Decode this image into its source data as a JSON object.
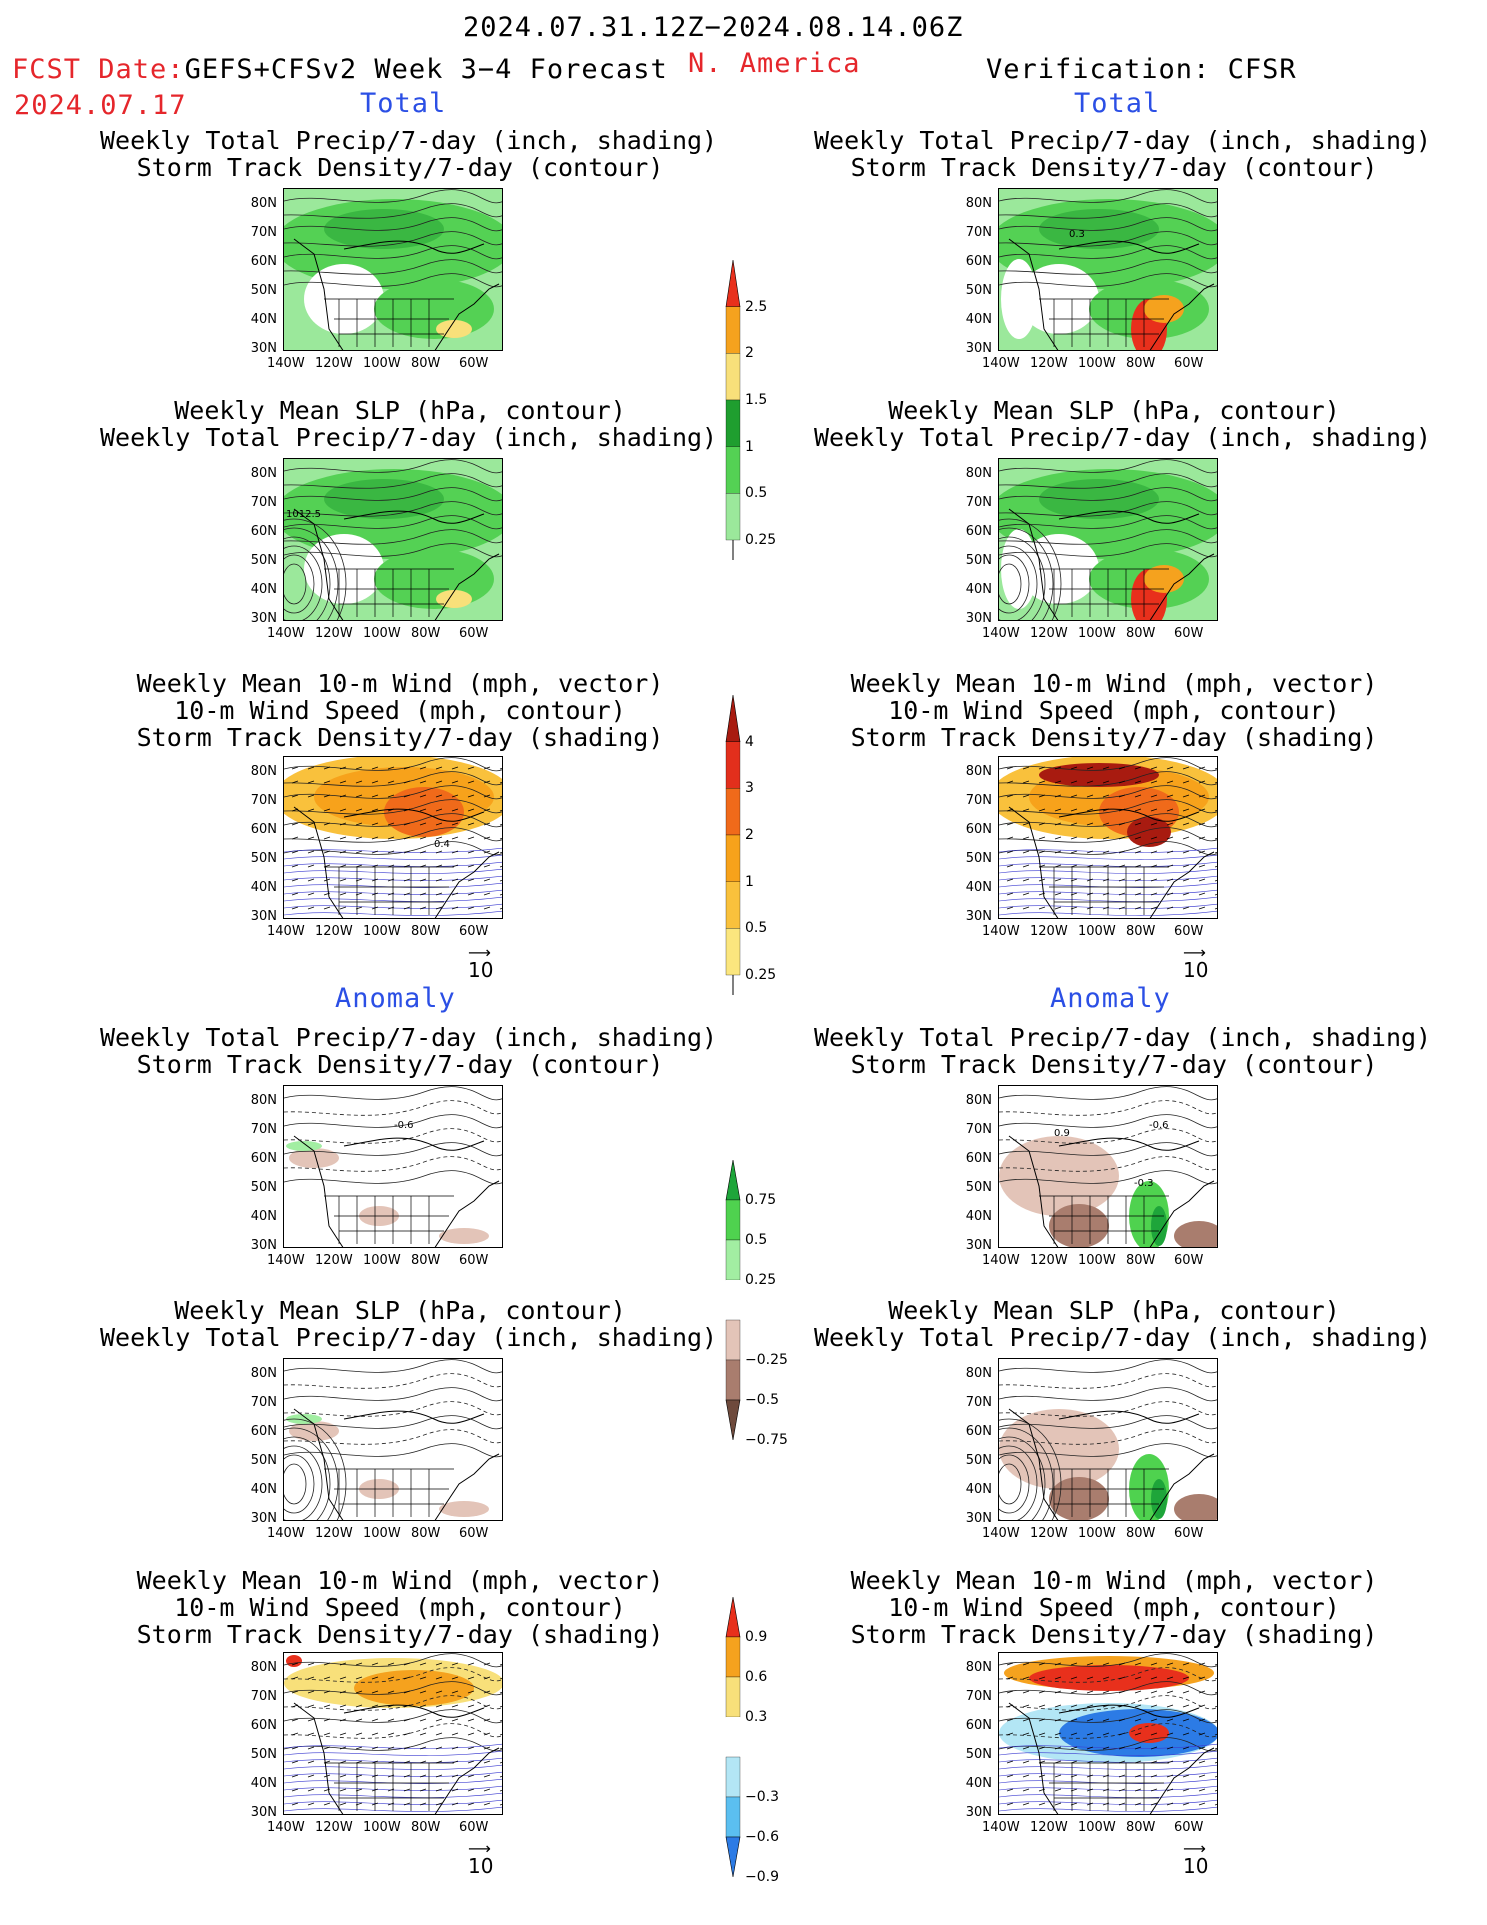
{
  "header": {
    "date_range": "2024.07.31.12Z−2024.08.14.06Z",
    "fcst_label": "FCST Date:",
    "model": "GEFS+CFSv2 Week 3−4 Forecast",
    "fcst_date": "2024.07.17",
    "region": "N. America",
    "verification": "Verification: CFSR"
  },
  "sections": {
    "total": "Total",
    "anomaly": "Anomaly"
  },
  "panel_titles": {
    "precip_storm": "Weekly Total Precip/7-day (inch, shading)\nStorm Track Density/7-day (contour)",
    "slp_precip": "Weekly Mean SLP (hPa, contour)\nWeekly Total Precip/7-day (inch, shading)",
    "wind_storm": "Weekly Mean 10-m Wind (mph, vector)\n10-m Wind Speed (mph, contour)\nStorm Track Density/7-day (shading)"
  },
  "axes": {
    "lat_labels": [
      "80N",
      "70N",
      "60N",
      "50N",
      "40N",
      "30N"
    ],
    "lon_labels": [
      "140W",
      "120W",
      "100W",
      "80W",
      "60W"
    ]
  },
  "vector_ref": "10",
  "map_labels": {
    "slp_contour": "1012.5",
    "storm_04": "0.4",
    "storm_03": "0.3",
    "anom_a": "-0.6",
    "anom_b": "0.9",
    "anom_c": "-0.3"
  },
  "colorbars": {
    "precip_total": {
      "labels": [
        "2.5",
        "2",
        "1.5",
        "1",
        "0.5",
        "0.25"
      ],
      "colors": [
        "#e8301c",
        "#f5a21e",
        "#f8e07a",
        "#1f9e2f",
        "#54d154",
        "#9be89b"
      ]
    },
    "storm_total": {
      "labels": [
        "4",
        "3",
        "2",
        "1",
        "0.5",
        "0.25"
      ],
      "colors": [
        "#a81b10",
        "#e22f1c",
        "#f06a1a",
        "#f7a21b",
        "#f9c13c",
        "#fbe67e"
      ]
    },
    "precip_anom": {
      "labels": [
        "0.75",
        "0.5",
        "0.25",
        "−0.25",
        "−0.5",
        "−0.75"
      ],
      "colors": [
        "#1ea53a",
        "#4fd24f",
        "#a2eea2",
        "#ffffff",
        "#e3c4b8",
        "#a97d6e",
        "#6e4a3c"
      ]
    },
    "storm_anom": {
      "labels": [
        "0.9",
        "0.6",
        "0.3",
        "−0.3",
        "−0.6",
        "−0.9"
      ],
      "colors": [
        "#e8301c",
        "#f5a21e",
        "#f8e07a",
        "#ffffff",
        "#b3e6f5",
        "#5bbff0",
        "#2c7be5"
      ]
    }
  },
  "colors": {
    "accent_red": "#e5262b",
    "accent_blue": "#2b4fe5"
  }
}
